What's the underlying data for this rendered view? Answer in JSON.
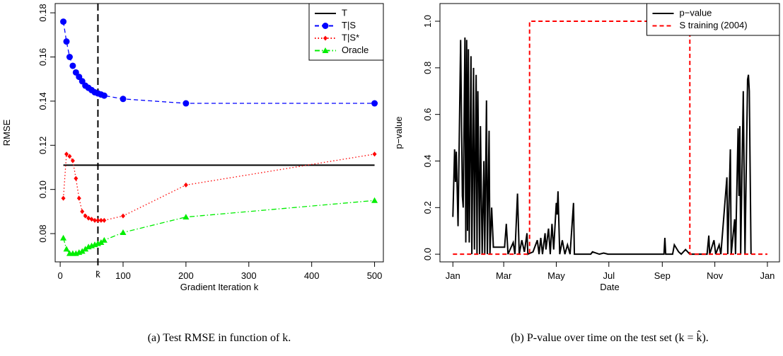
{
  "chart_data": [
    {
      "type": "line",
      "x_label": "Gradient Iteration k",
      "y_label": "RMSE",
      "caption": "(a) Test RMSE in function of k.",
      "xlim": [
        -8,
        514
      ],
      "ylim": [
        0.0672,
        0.1842
      ],
      "xticks": [
        0,
        100,
        200,
        300,
        400,
        500
      ],
      "yticks": [
        0.08,
        {
          "value": 0.1,
          "label": "0.10"
        },
        0.12,
        0.14,
        0.16,
        0.18
      ],
      "legend": "top-right",
      "annotations": [
        {
          "text": "k̂",
          "x": 60
        }
      ],
      "series": [
        {
          "name": "T",
          "color": "#000000",
          "line_style": "solid",
          "marker": "none",
          "x": [
            5,
            500
          ],
          "values": [
            0.111,
            0.111
          ]
        },
        {
          "name": "T|S",
          "color": "#0000ff",
          "line_style": "dashed",
          "marker": "circle",
          "x": [
            5,
            10,
            15,
            20,
            25,
            30,
            35,
            40,
            45,
            50,
            55,
            60,
            65,
            70,
            100,
            200,
            500
          ],
          "values": [
            0.176,
            0.167,
            0.16,
            0.156,
            0.153,
            0.151,
            0.149,
            0.147,
            0.146,
            0.145,
            0.144,
            0.1435,
            0.143,
            0.1425,
            0.141,
            0.139,
            0.139
          ]
        },
        {
          "name": "T|S*",
          "color": "#ff0000",
          "line_style": "dotted",
          "marker": "diamond",
          "x": [
            5,
            10,
            15,
            20,
            25,
            30,
            35,
            40,
            45,
            50,
            55,
            60,
            65,
            70,
            100,
            200,
            500
          ],
          "values": [
            0.096,
            0.116,
            0.115,
            0.113,
            0.105,
            0.096,
            0.09,
            0.088,
            0.087,
            0.0865,
            0.086,
            0.086,
            0.086,
            0.086,
            0.088,
            0.102,
            0.116
          ]
        },
        {
          "name": "Oracle",
          "color": "#00ee00",
          "line_style": "dashdot",
          "marker": "triangle",
          "x": [
            5,
            10,
            15,
            20,
            25,
            30,
            35,
            40,
            45,
            50,
            55,
            60,
            65,
            70,
            100,
            200,
            500
          ],
          "values": [
            0.078,
            0.073,
            0.071,
            0.071,
            0.071,
            0.0715,
            0.072,
            0.073,
            0.074,
            0.0745,
            0.075,
            0.0755,
            0.076,
            0.077,
            0.0805,
            0.0875,
            0.095
          ]
        }
      ]
    },
    {
      "type": "line",
      "x_label": "Date",
      "y_label": "p−value",
      "caption": "(b) P-value over time on the test set (k = k̂).",
      "xlim": [
        -15,
        379
      ],
      "ylim": [
        -0.033,
        1.076
      ],
      "xticks": [
        {
          "value": 0,
          "label": "Jan"
        },
        {
          "value": 59,
          "label": "Mar"
        },
        {
          "value": 120,
          "label": "May"
        },
        {
          "value": 181,
          "label": "Jul"
        },
        {
          "value": 243,
          "label": "Sep"
        },
        {
          "value": 304,
          "label": "Nov"
        },
        {
          "value": 365,
          "label": "Jan"
        }
      ],
      "yticks": [
        {
          "value": 0,
          "label": "0.0"
        },
        0.2,
        0.4,
        0.6,
        0.8,
        {
          "value": 1,
          "label": "1.0"
        }
      ],
      "legend": "top-right",
      "annotations": [],
      "series": [
        {
          "name": "p−value",
          "color": "#000000",
          "line_style": "solid",
          "marker": "none",
          "x": [
            0,
            2,
            3,
            4,
            6,
            9,
            11,
            12,
            14,
            15,
            16,
            17,
            18,
            19,
            21,
            22,
            24,
            25,
            27,
            28,
            29,
            31,
            32,
            34,
            36,
            37,
            39,
            40,
            42,
            43,
            45,
            47,
            60,
            62,
            64,
            70,
            72,
            75,
            77,
            80,
            83,
            86,
            87,
            93,
            98,
            100,
            102,
            104,
            107,
            108,
            111,
            113,
            115,
            117,
            120,
            121,
            122,
            124,
            127,
            130,
            133,
            136,
            140,
            141,
            160,
            162,
            170,
            175,
            180,
            245,
            246,
            247,
            255,
            257,
            262,
            265,
            270,
            275,
            295,
            297,
            298,
            303,
            305,
            309,
            311,
            318,
            319,
            322,
            323,
            327,
            328,
            331,
            332,
            333,
            334,
            337,
            339,
            342,
            343,
            344,
            346
          ],
          "values": [
            0.16,
            0.45,
            0.31,
            0.44,
            0.12,
            0.92,
            0.25,
            0.2,
            0.93,
            0.05,
            0.92,
            0.1,
            0.88,
            0.05,
            0.85,
            0,
            0.8,
            0.02,
            0.77,
            0,
            0.7,
            0,
            0.55,
            0,
            0.4,
            0,
            0.66,
            0,
            0.53,
            0,
            0.2,
            0.03,
            0.03,
            0.13,
            0,
            0.05,
            0,
            0.26,
            0,
            0.06,
            0.01,
            0.09,
            0,
            0.01,
            0.06,
            0,
            0.07,
            0,
            0.09,
            0.02,
            0.11,
            0,
            0.13,
            0.02,
            0.22,
            0.17,
            0.27,
            0,
            0.06,
            0,
            0.04,
            0,
            0.22,
            0,
            0,
            0.01,
            0,
            0.005,
            0,
            0,
            0.07,
            0,
            0,
            0.04,
            0.01,
            0,
            0.02,
            0,
            0,
            0.08,
            0,
            0.06,
            0,
            0.04,
            0,
            0.33,
            0,
            0.45,
            0,
            0.15,
            0,
            0.54,
            0.25,
            0.55,
            0,
            0.7,
            0,
            0.75,
            0.77,
            0.7,
            0
          ]
        },
        {
          "name": "S training (2004)",
          "color": "#ff0000",
          "line_style": "dashed",
          "marker": "none",
          "x": [
            0,
            89,
            89,
            275,
            275,
            365
          ],
          "values": [
            0,
            0,
            1,
            1,
            0,
            0
          ]
        }
      ]
    }
  ]
}
